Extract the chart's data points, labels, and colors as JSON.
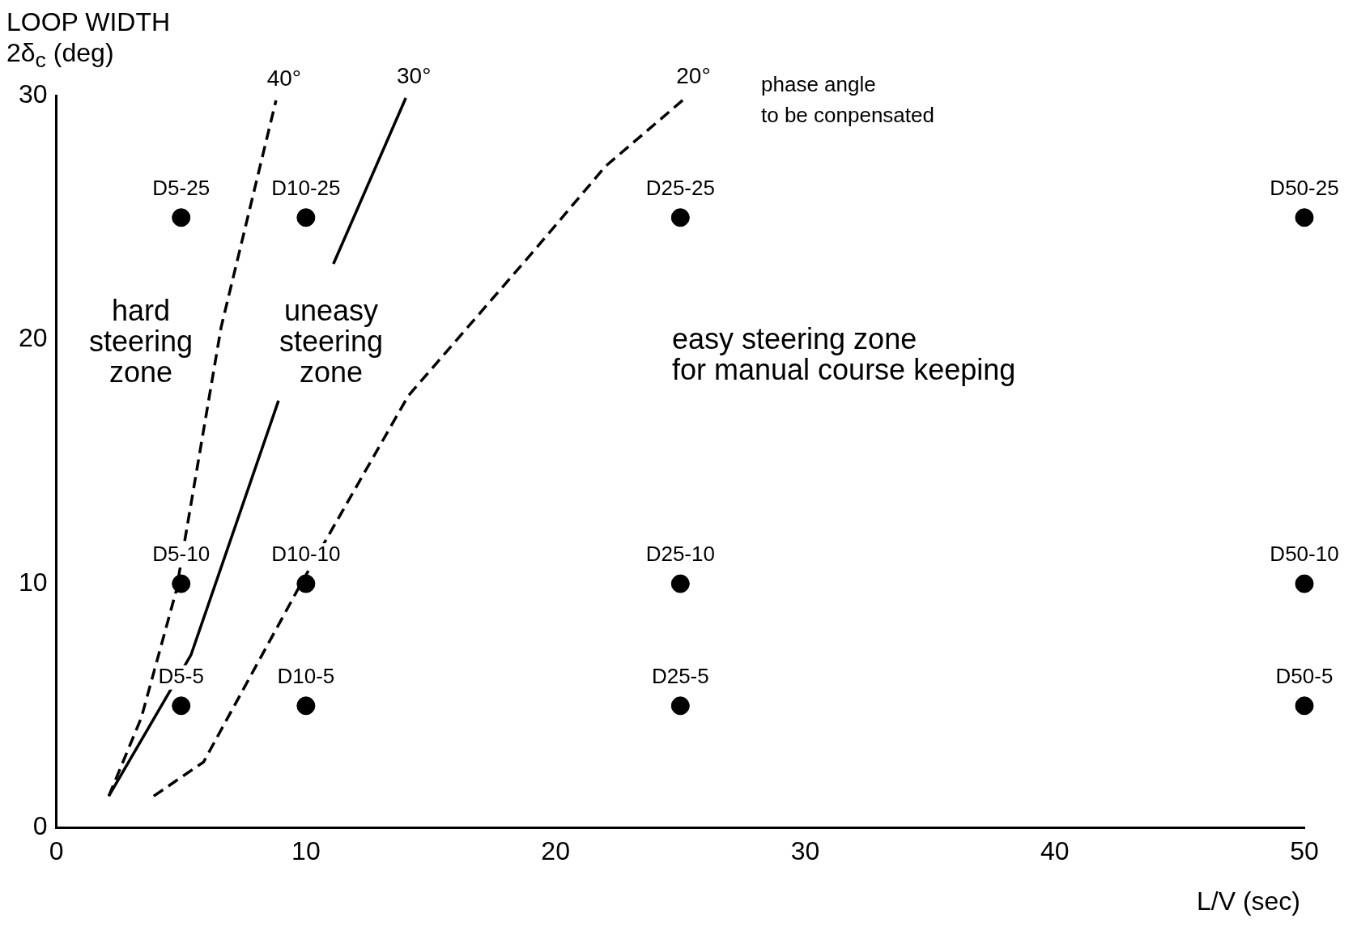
{
  "chart_data": {
    "type": "scatter",
    "xlabel": "L/V (sec)",
    "ylabel": "LOOP WIDTH\n2δ$_{c}$ (deg)",
    "xlim": [
      0,
      50
    ],
    "xticks": [
      0,
      10,
      20,
      30,
      40,
      50
    ],
    "ylim": [
      0,
      30
    ],
    "yticks": [
      0,
      10,
      20,
      30
    ],
    "grid": false,
    "legend": false,
    "series": [
      {
        "color": "#000000",
        "marker": "circle",
        "x": [
          5,
          10,
          25,
          50,
          5,
          10,
          25,
          50,
          5,
          10,
          25,
          50
        ],
        "values": [
          25,
          25,
          25,
          25,
          10,
          10,
          10,
          10,
          5,
          5,
          5,
          5
        ]
      },
      {
        "type": "line",
        "name": "40°",
        "color": "#000000",
        "line_style": "dashed",
        "marker": "none",
        "x": [
          2.1,
          3.4,
          4.8,
          6.6,
          8.8
        ],
        "values": [
          1.3,
          4.5,
          9.7,
          20.5,
          29.8
        ]
      },
      {
        "type": "line",
        "name": "30°",
        "color": "#000000",
        "line_style": "solid",
        "marker": "none",
        "x": [
          2.1,
          5.4,
          8.9,
          null,
          11.1,
          14.0
        ],
        "values": [
          1.3,
          7.1,
          17.5,
          null,
          23.1,
          29.9
        ]
      },
      {
        "type": "line",
        "name": "20°",
        "color": "#000000",
        "line_style": "dashed",
        "marker": "none",
        "x": [
          3.9,
          5.9,
          9.8,
          14.1,
          19.1,
          22.0,
          25.2
        ],
        "values": [
          1.3,
          2.7,
          10,
          17.7,
          23.6,
          27.1,
          29.9
        ]
      }
    ],
    "annotations": [
      {
        "text": "D5-25",
        "x": 5,
        "y": 25
      },
      {
        "text": "D10-25",
        "x": 10,
        "y": 25
      },
      {
        "text": "D25-25",
        "x": 25,
        "y": 25
      },
      {
        "text": "D50-25",
        "x": 50,
        "y": 25
      },
      {
        "text": "D5-10",
        "x": 5,
        "y": 10
      },
      {
        "text": "D10-10",
        "x": 10,
        "y": 10
      },
      {
        "text": "D25-10",
        "x": 25,
        "y": 10
      },
      {
        "text": "D50-10",
        "x": 50,
        "y": 10
      },
      {
        "text": "D5-5",
        "x": 5,
        "y": 5
      },
      {
        "text": "D10-5",
        "x": 10,
        "y": 5
      },
      {
        "text": "D25-5",
        "x": 25,
        "y": 5
      },
      {
        "text": "D50-5",
        "x": 50,
        "y": 5
      },
      "hard\nsteering\nzone",
      "uneasy\nsteering\nzone",
      "easy steering zone\nfor manual course keeping",
      "phase angle\nto be conpensated"
    ]
  }
}
